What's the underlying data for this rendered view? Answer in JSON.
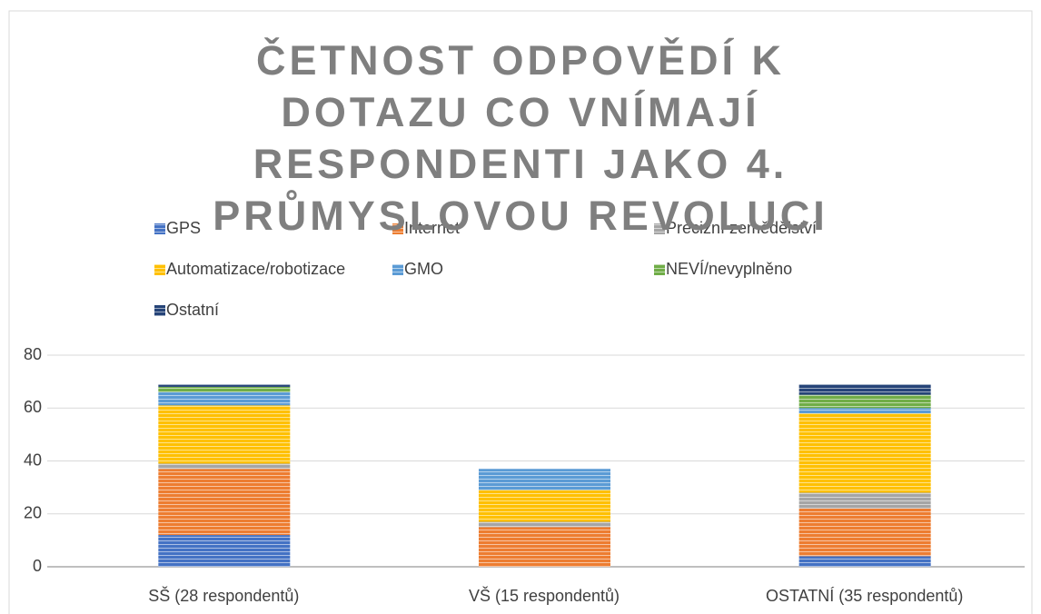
{
  "chart_data": {
    "type": "stacked_bar",
    "title": "ČETNOST ODPOVĚDÍ K DOTAZU CO VNÍMAJÍ RESPONDENTI JAKO 4. PRŮMYSLOVOU REVOLUCI",
    "categories": [
      "SŠ (28 respondentů)",
      "VŠ (15 respondentů)",
      "OSTATNÍ (35 respondentů)"
    ],
    "series": [
      {
        "name": "GPS",
        "color": "#4472c4",
        "values": [
          12,
          0,
          4
        ]
      },
      {
        "name": "Internet",
        "color": "#ed7d31",
        "values": [
          25,
          15,
          18
        ]
      },
      {
        "name": "Precizní zemědělství",
        "color": "#a5a5a5",
        "values": [
          2,
          2,
          6
        ]
      },
      {
        "name": "Automatizace/robotizace",
        "color": "#ffc000",
        "values": [
          22,
          12,
          30
        ]
      },
      {
        "name": "GMO",
        "color": "#5b9bd5",
        "values": [
          5,
          8,
          2
        ]
      },
      {
        "name": "NEVÍ/nevyplněno",
        "color": "#70ad47",
        "values": [
          2,
          0,
          5
        ]
      },
      {
        "name": "Ostatní",
        "color": "#264478",
        "values": [
          1,
          0,
          4
        ]
      }
    ],
    "ylim": [
      0,
      80
    ],
    "yticks": [
      0,
      20,
      40,
      60,
      80
    ],
    "grid": true,
    "legend": "top"
  }
}
